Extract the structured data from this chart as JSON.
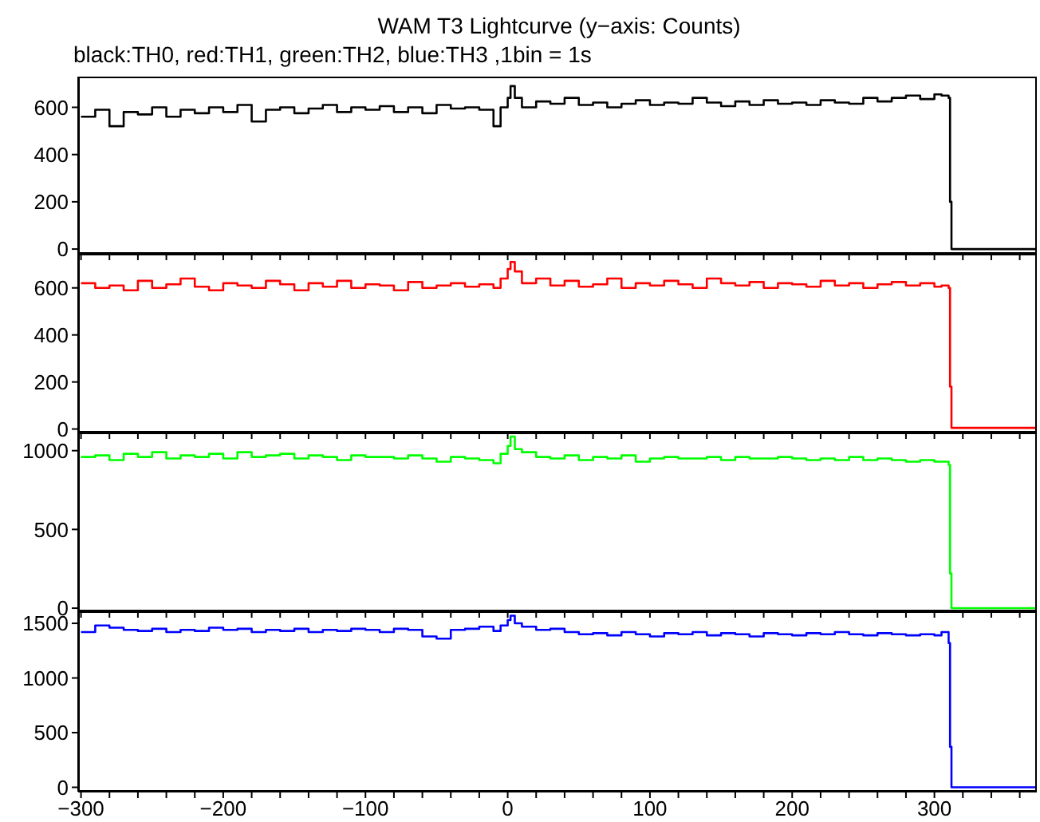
{
  "chart_data": [
    {
      "type": "step",
      "title": "WAM T3 Lightcurve (y−axis: Counts)",
      "subtitle": "black:TH0, red:TH1, green:TH2, blue:TH3 ,1bin = 1s",
      "tick_labels": "y",
      "legend": false,
      "grid": false,
      "xlim": [
        -302,
        372
      ],
      "ylim": [
        -20,
        730
      ],
      "yticks": [
        0,
        200,
        400,
        600
      ],
      "xticks": [
        -300,
        {
          "value": -280,
          "label": null
        },
        {
          "value": -260,
          "label": null
        },
        {
          "value": -240,
          "label": null
        },
        {
          "value": -220,
          "label": null
        },
        -200,
        {
          "value": -180,
          "label": null
        },
        {
          "value": -160,
          "label": null
        },
        {
          "value": -140,
          "label": null
        },
        {
          "value": -120,
          "label": null
        },
        -100,
        {
          "value": -80,
          "label": null
        },
        {
          "value": -60,
          "label": null
        },
        {
          "value": -40,
          "label": null
        },
        {
          "value": -20,
          "label": null
        },
        0,
        {
          "value": 20,
          "label": null
        },
        {
          "value": 40,
          "label": null
        },
        {
          "value": 60,
          "label": null
        },
        {
          "value": 80,
          "label": null
        },
        100,
        {
          "value": 120,
          "label": null
        },
        {
          "value": 140,
          "label": null
        },
        {
          "value": 160,
          "label": null
        },
        {
          "value": 180,
          "label": null
        },
        200,
        {
          "value": 220,
          "label": null
        },
        {
          "value": 240,
          "label": null
        },
        {
          "value": 260,
          "label": null
        },
        {
          "value": 280,
          "label": null
        },
        300,
        {
          "value": 320,
          "label": null
        },
        {
          "value": 340,
          "label": null
        },
        {
          "value": 360,
          "label": null
        }
      ],
      "x": [
        -300,
        -290,
        -280,
        -270,
        -260,
        -250,
        -240,
        -230,
        -220,
        -210,
        -200,
        -190,
        -180,
        -170,
        -160,
        -150,
        -140,
        -130,
        -120,
        -110,
        -100,
        -90,
        -80,
        -70,
        -60,
        -50,
        -40,
        -30,
        -20,
        -10,
        -5,
        0,
        2,
        5,
        10,
        20,
        30,
        40,
        50,
        60,
        70,
        80,
        90,
        100,
        110,
        120,
        130,
        140,
        150,
        160,
        170,
        180,
        190,
        200,
        210,
        220,
        230,
        240,
        250,
        260,
        270,
        280,
        290,
        300,
        305,
        310,
        311,
        312,
        372
      ],
      "series": [
        {
          "color": "#000000",
          "values": [
            560,
            590,
            520,
            580,
            570,
            600,
            560,
            590,
            575,
            600,
            580,
            610,
            540,
            590,
            600,
            575,
            595,
            610,
            580,
            600,
            590,
            605,
            580,
            600,
            575,
            610,
            595,
            600,
            590,
            520,
            600,
            640,
            690,
            640,
            600,
            625,
            615,
            640,
            610,
            620,
            600,
            615,
            630,
            610,
            620,
            615,
            640,
            620,
            605,
            625,
            610,
            630,
            615,
            620,
            610,
            630,
            620,
            615,
            640,
            625,
            640,
            650,
            635,
            655,
            650,
            640,
            200,
            0,
            0
          ]
        }
      ]
    },
    {
      "type": "step",
      "tick_labels": "y",
      "legend": false,
      "grid": false,
      "xlim": [
        -302,
        372
      ],
      "ylim": [
        -15,
        745
      ],
      "yticks": [
        0,
        200,
        400,
        600
      ],
      "xticks": [
        -300,
        {
          "value": -280,
          "label": null
        },
        {
          "value": -260,
          "label": null
        },
        {
          "value": -240,
          "label": null
        },
        {
          "value": -220,
          "label": null
        },
        -200,
        {
          "value": -180,
          "label": null
        },
        {
          "value": -160,
          "label": null
        },
        {
          "value": -140,
          "label": null
        },
        {
          "value": -120,
          "label": null
        },
        -100,
        {
          "value": -80,
          "label": null
        },
        {
          "value": -60,
          "label": null
        },
        {
          "value": -40,
          "label": null
        },
        {
          "value": -20,
          "label": null
        },
        0,
        {
          "value": 20,
          "label": null
        },
        {
          "value": 40,
          "label": null
        },
        {
          "value": 60,
          "label": null
        },
        {
          "value": 80,
          "label": null
        },
        100,
        {
          "value": 120,
          "label": null
        },
        {
          "value": 140,
          "label": null
        },
        {
          "value": 160,
          "label": null
        },
        {
          "value": 180,
          "label": null
        },
        200,
        {
          "value": 220,
          "label": null
        },
        {
          "value": 240,
          "label": null
        },
        {
          "value": 260,
          "label": null
        },
        {
          "value": 280,
          "label": null
        },
        300,
        {
          "value": 320,
          "label": null
        },
        {
          "value": 340,
          "label": null
        },
        {
          "value": 360,
          "label": null
        }
      ],
      "x": [
        -300,
        -290,
        -280,
        -270,
        -260,
        -250,
        -240,
        -230,
        -220,
        -210,
        -200,
        -190,
        -180,
        -170,
        -160,
        -150,
        -140,
        -130,
        -120,
        -110,
        -100,
        -90,
        -80,
        -70,
        -60,
        -50,
        -40,
        -30,
        -20,
        -10,
        -5,
        0,
        2,
        5,
        10,
        20,
        30,
        40,
        50,
        60,
        70,
        80,
        90,
        100,
        110,
        120,
        130,
        140,
        150,
        160,
        170,
        180,
        190,
        200,
        210,
        220,
        230,
        240,
        250,
        260,
        270,
        280,
        290,
        300,
        305,
        310,
        311,
        312,
        372
      ],
      "series": [
        {
          "color": "#ff0000",
          "values": [
            620,
            600,
            610,
            590,
            630,
            600,
            615,
            640,
            605,
            590,
            620,
            610,
            600,
            630,
            615,
            590,
            620,
            605,
            630,
            600,
            615,
            610,
            590,
            625,
            600,
            610,
            620,
            605,
            615,
            600,
            640,
            680,
            710,
            670,
            620,
            640,
            610,
            630,
            605,
            615,
            640,
            600,
            620,
            610,
            630,
            615,
            600,
            640,
            620,
            610,
            625,
            600,
            620,
            615,
            605,
            630,
            610,
            620,
            600,
            615,
            625,
            610,
            620,
            605,
            610,
            600,
            180,
            5,
            5
          ]
        }
      ]
    },
    {
      "type": "step",
      "tick_labels": "y",
      "legend": false,
      "grid": false,
      "xlim": [
        -302,
        372
      ],
      "ylim": [
        -20,
        1115
      ],
      "yticks": [
        0,
        500,
        1000
      ],
      "xticks": [
        -300,
        {
          "value": -280,
          "label": null
        },
        {
          "value": -260,
          "label": null
        },
        {
          "value": -240,
          "label": null
        },
        {
          "value": -220,
          "label": null
        },
        -200,
        {
          "value": -180,
          "label": null
        },
        {
          "value": -160,
          "label": null
        },
        {
          "value": -140,
          "label": null
        },
        {
          "value": -120,
          "label": null
        },
        -100,
        {
          "value": -80,
          "label": null
        },
        {
          "value": -60,
          "label": null
        },
        {
          "value": -40,
          "label": null
        },
        {
          "value": -20,
          "label": null
        },
        0,
        {
          "value": 20,
          "label": null
        },
        {
          "value": 40,
          "label": null
        },
        {
          "value": 60,
          "label": null
        },
        {
          "value": 80,
          "label": null
        },
        100,
        {
          "value": 120,
          "label": null
        },
        {
          "value": 140,
          "label": null
        },
        {
          "value": 160,
          "label": null
        },
        {
          "value": 180,
          "label": null
        },
        200,
        {
          "value": 220,
          "label": null
        },
        {
          "value": 240,
          "label": null
        },
        {
          "value": 260,
          "label": null
        },
        {
          "value": 280,
          "label": null
        },
        300,
        {
          "value": 320,
          "label": null
        },
        {
          "value": 340,
          "label": null
        },
        {
          "value": 360,
          "label": null
        }
      ],
      "x": [
        -300,
        -290,
        -280,
        -270,
        -260,
        -250,
        -240,
        -230,
        -220,
        -210,
        -200,
        -190,
        -180,
        -170,
        -160,
        -150,
        -140,
        -130,
        -120,
        -110,
        -100,
        -90,
        -80,
        -70,
        -60,
        -50,
        -40,
        -30,
        -20,
        -10,
        -5,
        0,
        2,
        5,
        10,
        20,
        30,
        40,
        50,
        60,
        70,
        80,
        90,
        100,
        110,
        120,
        130,
        140,
        150,
        160,
        170,
        180,
        190,
        200,
        210,
        220,
        230,
        240,
        250,
        260,
        270,
        280,
        290,
        300,
        305,
        310,
        311,
        312,
        372
      ],
      "series": [
        {
          "color": "#00ff00",
          "values": [
            960,
            970,
            940,
            980,
            960,
            990,
            950,
            970,
            960,
            980,
            950,
            990,
            960,
            970,
            980,
            950,
            970,
            960,
            940,
            970,
            960,
            960,
            950,
            970,
            950,
            930,
            960,
            950,
            940,
            920,
            980,
            1030,
            1090,
            1010,
            990,
            960,
            950,
            970,
            940,
            960,
            950,
            970,
            930,
            950,
            960,
            950,
            950,
            960,
            940,
            960,
            950,
            950,
            960,
            950,
            940,
            950,
            940,
            960,
            940,
            950,
            940,
            930,
            940,
            930,
            930,
            910,
            220,
            0,
            0
          ]
        }
      ]
    },
    {
      "type": "step",
      "legend": false,
      "grid": false,
      "xlim": [
        -302,
        372
      ],
      "ylim": [
        -40,
        1610
      ],
      "yticks": [
        0,
        500,
        1000,
        1500
      ],
      "xticks": [
        {
          "value": -300,
          "label": "−300"
        },
        {
          "value": -280,
          "label": null
        },
        {
          "value": -260,
          "label": null
        },
        {
          "value": -240,
          "label": null
        },
        {
          "value": -220,
          "label": null
        },
        {
          "value": -200,
          "label": "−200"
        },
        {
          "value": -180,
          "label": null
        },
        {
          "value": -160,
          "label": null
        },
        {
          "value": -140,
          "label": null
        },
        {
          "value": -120,
          "label": null
        },
        {
          "value": -100,
          "label": "−100"
        },
        {
          "value": -80,
          "label": null
        },
        {
          "value": -60,
          "label": null
        },
        {
          "value": -40,
          "label": null
        },
        {
          "value": -20,
          "label": null
        },
        0,
        {
          "value": 20,
          "label": null
        },
        {
          "value": 40,
          "label": null
        },
        {
          "value": 60,
          "label": null
        },
        {
          "value": 80,
          "label": null
        },
        100,
        {
          "value": 120,
          "label": null
        },
        {
          "value": 140,
          "label": null
        },
        {
          "value": 160,
          "label": null
        },
        {
          "value": 180,
          "label": null
        },
        200,
        {
          "value": 220,
          "label": null
        },
        {
          "value": 240,
          "label": null
        },
        {
          "value": 260,
          "label": null
        },
        {
          "value": 280,
          "label": null
        },
        300,
        {
          "value": 320,
          "label": null
        },
        {
          "value": 340,
          "label": null
        },
        {
          "value": 360,
          "label": null
        }
      ],
      "x": [
        -300,
        -290,
        -280,
        -270,
        -260,
        -250,
        -240,
        -230,
        -220,
        -210,
        -200,
        -190,
        -180,
        -170,
        -160,
        -150,
        -140,
        -130,
        -120,
        -110,
        -100,
        -90,
        -80,
        -70,
        -60,
        -50,
        -40,
        -30,
        -20,
        -10,
        -5,
        0,
        2,
        5,
        10,
        20,
        30,
        40,
        50,
        60,
        70,
        80,
        90,
        100,
        110,
        120,
        130,
        140,
        150,
        160,
        170,
        180,
        190,
        200,
        210,
        220,
        230,
        240,
        250,
        260,
        270,
        280,
        290,
        300,
        305,
        310,
        311,
        312,
        372
      ],
      "series": [
        {
          "color": "#0000ff",
          "values": [
            1420,
            1480,
            1460,
            1440,
            1430,
            1450,
            1420,
            1440,
            1430,
            1460,
            1440,
            1450,
            1420,
            1440,
            1430,
            1450,
            1420,
            1440,
            1430,
            1450,
            1440,
            1420,
            1450,
            1440,
            1380,
            1360,
            1440,
            1450,
            1470,
            1430,
            1480,
            1530,
            1570,
            1500,
            1470,
            1440,
            1450,
            1420,
            1400,
            1410,
            1390,
            1420,
            1400,
            1380,
            1410,
            1400,
            1420,
            1390,
            1410,
            1400,
            1380,
            1410,
            1400,
            1390,
            1410,
            1400,
            1420,
            1400,
            1390,
            1410,
            1400,
            1390,
            1400,
            1390,
            1420,
            1320,
            370,
            0,
            0
          ]
        }
      ]
    }
  ]
}
